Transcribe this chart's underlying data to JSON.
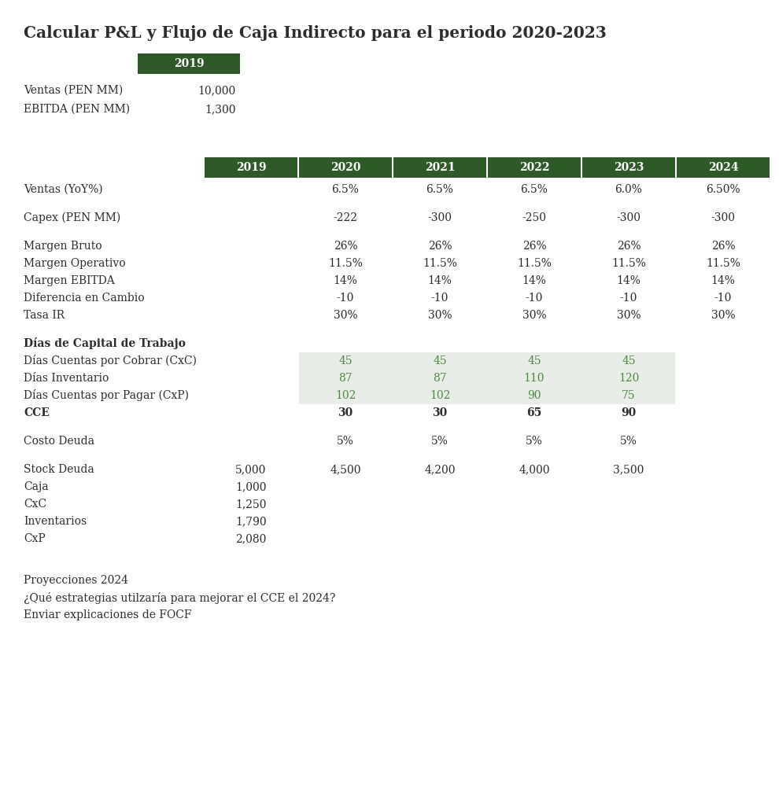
{
  "title": "Calcular P&L y Flujo de Caja Indirecto para el periodo 2020-2023",
  "bg_color": "#ffffff",
  "header_bg": "#2d5a27",
  "header_text_color": "#ffffff",
  "text_color": "#2c2c2c",
  "green_text_color": "#4a8a3a",
  "shaded_bg": "#e8ede8",
  "ventas_label": "Ventas (PEN MM)",
  "ventas_value": "10,000",
  "ebitda_label": "EBITDA (PEN MM)",
  "ebitda_value": "1,300",
  "table_headers": [
    "2019",
    "2020",
    "2021",
    "2022",
    "2023",
    "2024"
  ],
  "rows": [
    {
      "label": "Ventas (YoY%)",
      "values": [
        "",
        "6.5%",
        "6.5%",
        "6.5%",
        "6.0%",
        "6.50%"
      ],
      "bold": false,
      "shaded": false,
      "green": false,
      "spacer_after": true
    },
    {
      "label": "Capex (PEN MM)",
      "values": [
        "",
        "-222",
        "-300",
        "-250",
        "-300",
        "-300"
      ],
      "bold": false,
      "shaded": false,
      "green": false,
      "spacer_after": true
    },
    {
      "label": "Margen Bruto",
      "values": [
        "",
        "26%",
        "26%",
        "26%",
        "26%",
        "26%"
      ],
      "bold": false,
      "shaded": false,
      "green": false,
      "spacer_after": false
    },
    {
      "label": "Margen Operativo",
      "values": [
        "",
        "11.5%",
        "11.5%",
        "11.5%",
        "11.5%",
        "11.5%"
      ],
      "bold": false,
      "shaded": false,
      "green": false,
      "spacer_after": false
    },
    {
      "label": "Margen EBITDA",
      "values": [
        "",
        "14%",
        "14%",
        "14%",
        "14%",
        "14%"
      ],
      "bold": false,
      "shaded": false,
      "green": false,
      "spacer_after": false
    },
    {
      "label": "Diferencia en Cambio",
      "values": [
        "",
        "-10",
        "-10",
        "-10",
        "-10",
        "-10"
      ],
      "bold": false,
      "shaded": false,
      "green": false,
      "spacer_after": false
    },
    {
      "label": "Tasa IR",
      "values": [
        "",
        "30%",
        "30%",
        "30%",
        "30%",
        "30%"
      ],
      "bold": false,
      "shaded": false,
      "green": false,
      "spacer_after": true
    },
    {
      "label": "Días de Capital de Trabajo",
      "values": [
        "",
        "",
        "",
        "",
        "",
        ""
      ],
      "bold": true,
      "shaded": false,
      "green": false,
      "spacer_after": false
    },
    {
      "label": "Días Cuentas por Cobrar (CxC)",
      "values": [
        "",
        "45",
        "45",
        "45",
        "45",
        ""
      ],
      "bold": false,
      "shaded": true,
      "green": true,
      "spacer_after": false
    },
    {
      "label": "Días Inventario",
      "values": [
        "",
        "87",
        "87",
        "110",
        "120",
        ""
      ],
      "bold": false,
      "shaded": true,
      "green": true,
      "spacer_after": false
    },
    {
      "label": "Días Cuentas por Pagar (CxP)",
      "values": [
        "",
        "102",
        "102",
        "90",
        "75",
        ""
      ],
      "bold": false,
      "shaded": true,
      "green": true,
      "spacer_after": false
    },
    {
      "label": "CCE",
      "values": [
        "",
        "30",
        "30",
        "65",
        "90",
        ""
      ],
      "bold": true,
      "shaded": false,
      "green": false,
      "spacer_after": true
    },
    {
      "label": "Costo Deuda",
      "values": [
        "",
        "5%",
        "5%",
        "5%",
        "5%",
        ""
      ],
      "bold": false,
      "shaded": false,
      "green": false,
      "spacer_after": true
    },
    {
      "label": "Stock Deuda",
      "values": [
        "5,000",
        "4,500",
        "4,200",
        "4,000",
        "3,500",
        ""
      ],
      "bold": false,
      "shaded": false,
      "green": false,
      "spacer_after": false
    },
    {
      "label": "Caja",
      "values": [
        "1,000",
        "",
        "",
        "",
        "",
        ""
      ],
      "bold": false,
      "shaded": false,
      "green": false,
      "spacer_after": false
    },
    {
      "label": "CxC",
      "values": [
        "1,250",
        "",
        "",
        "",
        "",
        ""
      ],
      "bold": false,
      "shaded": false,
      "green": false,
      "spacer_after": false
    },
    {
      "label": "Inventarios",
      "values": [
        "1,790",
        "",
        "",
        "",
        "",
        ""
      ],
      "bold": false,
      "shaded": false,
      "green": false,
      "spacer_after": false
    },
    {
      "label": "CxP",
      "values": [
        "2,080",
        "",
        "",
        "",
        "",
        ""
      ],
      "bold": false,
      "shaded": false,
      "green": false,
      "spacer_after": false
    }
  ],
  "footnote_lines": [
    "Proyecciones 2024",
    "¿Qué estrategias utilzaría para mejorar el CCE el 2024?",
    "Enviar explicaciones de FOCF"
  ],
  "fig_w": 9.9,
  "fig_h": 10.16,
  "dpi": 100
}
